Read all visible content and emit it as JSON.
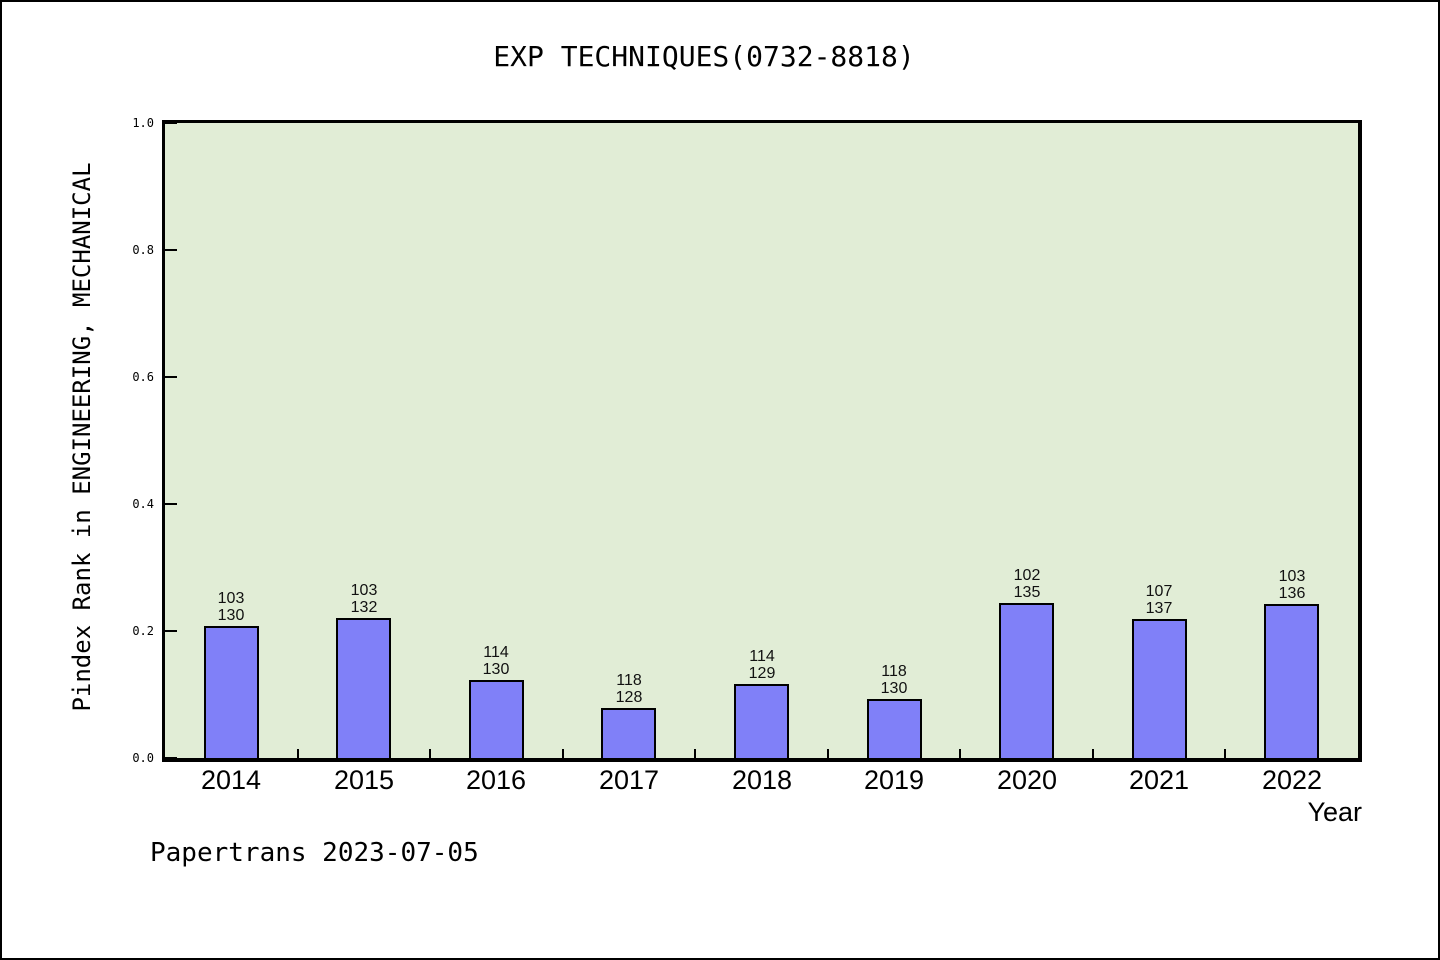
{
  "chart_data": {
    "type": "bar",
    "title": "EXP TECHNIQUES(0732-8818)",
    "xlabel": "Year",
    "ylabel": "Pindex Rank in ENGINEERING, MECHANICAL",
    "annotation": "Papertrans 2023-07-05",
    "ylim": [
      0.0,
      1.0
    ],
    "yticks": [
      0.0,
      0.2,
      0.4,
      0.6,
      0.8,
      1.0
    ],
    "grid": "off",
    "legend": "none",
    "colors": {
      "plot_background": "#e1edd6",
      "bar_fill": "#8080f8",
      "bar_edge": "#000000",
      "axis": "#000000",
      "page_background": "#ffffff"
    },
    "categories": [
      "2014",
      "2015",
      "2016",
      "2017",
      "2018",
      "2019",
      "2020",
      "2021",
      "2022"
    ],
    "bars": [
      {
        "year": "2014",
        "rank": "103",
        "total": "130",
        "value": 0.2077
      },
      {
        "year": "2015",
        "rank": "103",
        "total": "132",
        "value": 0.2197
      },
      {
        "year": "2016",
        "rank": "114",
        "total": "130",
        "value": 0.1231
      },
      {
        "year": "2017",
        "rank": "118",
        "total": "128",
        "value": 0.0781
      },
      {
        "year": "2018",
        "rank": "114",
        "total": "129",
        "value": 0.1163
      },
      {
        "year": "2019",
        "rank": "118",
        "total": "130",
        "value": 0.0923
      },
      {
        "year": "2020",
        "rank": "102",
        "total": "135",
        "value": 0.2444
      },
      {
        "year": "2021",
        "rank": "107",
        "total": "137",
        "value": 0.219
      },
      {
        "year": "2022",
        "rank": "103",
        "total": "136",
        "value": 0.2426
      }
    ]
  }
}
